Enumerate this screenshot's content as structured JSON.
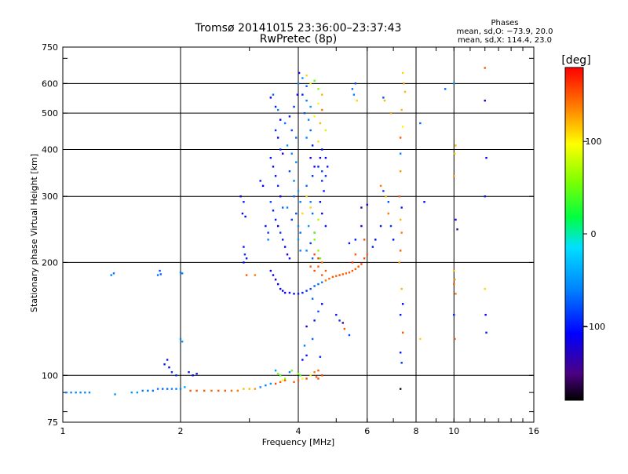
{
  "chart_data": {
    "type": "scatter",
    "title": "Tromsø 20141015 23:36:00–23:37:43",
    "subtitle": "RwPretec (8p)",
    "stats": {
      "header": "Phases",
      "line_o": "mean, sd,O: −73.9, 20.0",
      "line_x": "mean, sd,X: 114.4, 23.0"
    },
    "xlabel": "Frequency [MHz]",
    "ylabel": "Stationary phase Virtual Height [km]",
    "x_scale": "log",
    "y_scale": "log",
    "xlim": [
      1,
      16
    ],
    "ylim": [
      75,
      750
    ],
    "x_ticks": [
      1,
      2,
      4,
      6,
      8,
      10,
      16
    ],
    "x_tick_labels": [
      "1",
      "2",
      "4",
      "6",
      "8",
      "10",
      "16"
    ],
    "y_ticks": [
      75,
      100,
      200,
      300,
      400,
      500,
      600,
      750
    ],
    "y_tick_labels": [
      "75",
      "100",
      "200",
      "300",
      "400",
      "500",
      "600",
      "750"
    ],
    "grid_x": [
      2,
      4,
      6,
      8,
      10
    ],
    "grid_y": [
      100,
      200,
      300,
      400,
      500,
      600
    ],
    "colorbar": {
      "label": "[deg]",
      "range": [
        -180,
        180
      ],
      "ticks": [
        100,
        0,
        -100
      ],
      "tick_labels": [
        "100",
        "0",
        "−100"
      ]
    },
    "points": [
      [
        1.02,
        90,
        -55
      ],
      [
        1.05,
        90,
        -55
      ],
      [
        1.08,
        90,
        -55
      ],
      [
        1.11,
        90,
        -55
      ],
      [
        1.14,
        90,
        -55
      ],
      [
        1.17,
        90,
        -55
      ],
      [
        1.36,
        89,
        -50
      ],
      [
        1.5,
        90,
        -50
      ],
      [
        1.55,
        90,
        -50
      ],
      [
        1.6,
        91,
        -60
      ],
      [
        1.65,
        91,
        -65
      ],
      [
        1.7,
        91,
        -65
      ],
      [
        1.75,
        92,
        -65
      ],
      [
        1.8,
        92,
        -70
      ],
      [
        1.85,
        92,
        -70
      ],
      [
        1.9,
        92,
        -60
      ],
      [
        1.95,
        92,
        -65
      ],
      [
        2.0,
        92,
        -60
      ],
      [
        2.05,
        93,
        -40
      ],
      [
        2.12,
        91,
        150
      ],
      [
        2.2,
        91,
        150
      ],
      [
        2.3,
        91,
        150
      ],
      [
        2.4,
        91,
        145
      ],
      [
        2.5,
        91,
        150
      ],
      [
        2.6,
        91,
        150
      ],
      [
        2.7,
        91,
        145
      ],
      [
        2.8,
        91,
        140
      ],
      [
        2.9,
        92,
        120
      ],
      [
        3.0,
        92,
        120
      ],
      [
        3.1,
        92,
        130
      ],
      [
        3.2,
        93,
        -50
      ],
      [
        3.3,
        94,
        -60
      ],
      [
        3.4,
        95,
        -50
      ],
      [
        3.5,
        95,
        155
      ],
      [
        3.6,
        96,
        150
      ],
      [
        3.7,
        97,
        155
      ],
      [
        3.9,
        96,
        150
      ],
      [
        4.0,
        97,
        150
      ],
      [
        4.2,
        98,
        160
      ],
      [
        4.5,
        98,
        155
      ],
      [
        1.33,
        185,
        -60
      ],
      [
        1.35,
        187,
        -65
      ],
      [
        1.75,
        185,
        -65
      ],
      [
        1.77,
        190,
        -80
      ],
      [
        1.78,
        186,
        -70
      ],
      [
        2.0,
        188,
        -60
      ],
      [
        2.02,
        187,
        -60
      ],
      [
        2.0,
        125,
        -55
      ],
      [
        2.02,
        123,
        -50
      ],
      [
        1.82,
        107,
        -100
      ],
      [
        1.85,
        110,
        -100
      ],
      [
        1.87,
        105,
        -110
      ],
      [
        1.9,
        102,
        -90
      ],
      [
        1.95,
        100,
        -95
      ],
      [
        2.1,
        102,
        -100
      ],
      [
        2.15,
        100,
        -110
      ],
      [
        2.2,
        101,
        -100
      ],
      [
        2.85,
        300,
        -110
      ],
      [
        2.9,
        290,
        -100
      ],
      [
        2.88,
        270,
        -120
      ],
      [
        2.93,
        265,
        -110
      ],
      [
        2.9,
        220,
        -100
      ],
      [
        2.92,
        210,
        -90
      ],
      [
        2.95,
        205,
        -100
      ],
      [
        2.9,
        200,
        -110
      ],
      [
        2.95,
        185,
        150
      ],
      [
        3.1,
        185,
        140
      ],
      [
        3.2,
        330,
        -100
      ],
      [
        3.25,
        320,
        -110
      ],
      [
        3.3,
        250,
        -100
      ],
      [
        3.35,
        240,
        -90
      ],
      [
        3.4,
        190,
        -120
      ],
      [
        3.45,
        185,
        -115
      ],
      [
        3.5,
        180,
        -120
      ],
      [
        3.55,
        175,
        -110
      ],
      [
        3.6,
        170,
        -115
      ],
      [
        3.65,
        168,
        -110
      ],
      [
        3.7,
        166,
        -110
      ],
      [
        3.8,
        166,
        -105
      ],
      [
        3.9,
        165,
        -110
      ],
      [
        4.0,
        165,
        -100
      ],
      [
        4.1,
        166,
        -100
      ],
      [
        4.2,
        168,
        -95
      ],
      [
        4.3,
        170,
        -80
      ],
      [
        4.4,
        173,
        -75
      ],
      [
        4.5,
        175,
        -70
      ],
      [
        4.6,
        177,
        -60
      ],
      [
        4.7,
        179,
        140
      ],
      [
        4.8,
        181,
        145
      ],
      [
        4.9,
        183,
        150
      ],
      [
        5.0,
        184,
        150
      ],
      [
        5.1,
        185,
        155
      ],
      [
        5.2,
        186,
        150
      ],
      [
        5.3,
        187,
        145
      ],
      [
        5.4,
        188,
        150
      ],
      [
        5.5,
        190,
        155
      ],
      [
        5.6,
        192,
        150
      ],
      [
        5.7,
        195,
        150
      ],
      [
        5.8,
        198,
        155
      ],
      [
        5.9,
        205,
        155
      ],
      [
        4.3,
        195,
        150
      ],
      [
        4.4,
        190,
        155
      ],
      [
        4.5,
        195,
        150
      ],
      [
        4.6,
        200,
        145
      ],
      [
        4.4,
        210,
        155
      ],
      [
        4.5,
        205,
        160
      ],
      [
        4.6,
        185,
        150
      ],
      [
        4.7,
        190,
        150
      ],
      [
        3.4,
        550,
        -110
      ],
      [
        3.45,
        560,
        -70
      ],
      [
        3.5,
        520,
        -100
      ],
      [
        3.55,
        510,
        -60
      ],
      [
        3.6,
        480,
        -110
      ],
      [
        3.5,
        450,
        -90
      ],
      [
        3.55,
        430,
        -110
      ],
      [
        3.6,
        400,
        -100
      ],
      [
        3.65,
        390,
        -120
      ],
      [
        3.4,
        380,
        -100
      ],
      [
        3.45,
        360,
        -110
      ],
      [
        3.5,
        340,
        -100
      ],
      [
        3.55,
        320,
        -90
      ],
      [
        3.6,
        300,
        -110
      ],
      [
        3.65,
        280,
        -70
      ],
      [
        3.5,
        260,
        -100
      ],
      [
        3.55,
        250,
        -110
      ],
      [
        3.6,
        240,
        -90
      ],
      [
        3.65,
        230,
        -100
      ],
      [
        3.7,
        220,
        -110
      ],
      [
        3.75,
        210,
        -120
      ],
      [
        3.8,
        205,
        -100
      ],
      [
        3.4,
        290,
        -80
      ],
      [
        3.45,
        275,
        -100
      ],
      [
        3.35,
        230,
        -60
      ],
      [
        3.7,
        470,
        -60
      ],
      [
        3.8,
        490,
        -100
      ],
      [
        3.9,
        520,
        -90
      ],
      [
        3.85,
        450,
        -80
      ],
      [
        3.95,
        430,
        -70
      ],
      [
        3.75,
        410,
        -50
      ],
      [
        3.85,
        390,
        -60
      ],
      [
        3.95,
        370,
        -55
      ],
      [
        3.8,
        350,
        -80
      ],
      [
        3.9,
        330,
        -60
      ],
      [
        4.0,
        310,
        -50
      ],
      [
        3.9,
        300,
        -70
      ],
      [
        4.05,
        290,
        -60
      ],
      [
        3.95,
        270,
        -80
      ],
      [
        4.0,
        250,
        -60
      ],
      [
        4.05,
        240,
        -70
      ],
      [
        3.85,
        260,
        -90
      ],
      [
        3.75,
        280,
        -60
      ],
      [
        4.0,
        230,
        -50
      ],
      [
        4.05,
        215,
        -60
      ],
      [
        3.98,
        560,
        -110
      ],
      [
        4.0,
        600,
        -60
      ],
      [
        4.02,
        640,
        -120
      ],
      [
        4.1,
        620,
        -50
      ],
      [
        4.2,
        590,
        -70
      ],
      [
        4.1,
        560,
        -100
      ],
      [
        4.2,
        540,
        -60
      ],
      [
        4.3,
        520,
        -50
      ],
      [
        4.15,
        500,
        -80
      ],
      [
        4.25,
        480,
        -60
      ],
      [
        4.3,
        450,
        -70
      ],
      [
        4.2,
        430,
        -60
      ],
      [
        4.35,
        410,
        -100
      ],
      [
        4.3,
        380,
        -120
      ],
      [
        4.4,
        360,
        -110
      ],
      [
        4.35,
        340,
        -90
      ],
      [
        4.2,
        320,
        -70
      ],
      [
        4.3,
        290,
        -60
      ],
      [
        4.35,
        270,
        -70
      ],
      [
        4.25,
        250,
        -50
      ],
      [
        4.4,
        240,
        -80
      ],
      [
        4.3,
        225,
        -90
      ],
      [
        4.2,
        215,
        -60
      ],
      [
        4.35,
        205,
        -70
      ],
      [
        4.2,
        630,
        110
      ],
      [
        4.3,
        600,
        90
      ],
      [
        4.4,
        610,
        40
      ],
      [
        4.5,
        580,
        60
      ],
      [
        4.6,
        560,
        120
      ],
      [
        4.5,
        530,
        100
      ],
      [
        4.6,
        510,
        140
      ],
      [
        4.4,
        490,
        100
      ],
      [
        4.55,
        470,
        120
      ],
      [
        4.7,
        450,
        80
      ],
      [
        4.5,
        420,
        110
      ],
      [
        4.6,
        400,
        -110
      ],
      [
        4.55,
        380,
        -110
      ],
      [
        4.5,
        360,
        -100
      ],
      [
        4.6,
        350,
        -80
      ],
      [
        4.7,
        340,
        -90
      ],
      [
        4.65,
        310,
        -100
      ],
      [
        4.55,
        290,
        -110
      ],
      [
        4.6,
        270,
        -120
      ],
      [
        4.7,
        250,
        -100
      ],
      [
        4.7,
        380,
        -110
      ],
      [
        4.75,
        360,
        -100
      ],
      [
        4.6,
        330,
        -90
      ],
      [
        4.4,
        240,
        50
      ],
      [
        4.5,
        260,
        70
      ],
      [
        4.3,
        280,
        110
      ],
      [
        4.2,
        300,
        110
      ],
      [
        4.1,
        270,
        110
      ],
      [
        4.4,
        230,
        50
      ],
      [
        4.5,
        215,
        60
      ],
      [
        4.55,
        205,
        50
      ],
      [
        3.5,
        103,
        -50
      ],
      [
        3.55,
        101,
        60
      ],
      [
        3.6,
        100,
        40
      ],
      [
        3.7,
        98,
        60
      ],
      [
        3.65,
        97,
        100
      ],
      [
        3.8,
        102,
        -60
      ],
      [
        3.85,
        103,
        50
      ],
      [
        4.0,
        101,
        60
      ],
      [
        4.05,
        100,
        40
      ],
      [
        4.1,
        98,
        100
      ],
      [
        4.3,
        100,
        100
      ],
      [
        4.4,
        102,
        140
      ],
      [
        4.5,
        103,
        150
      ],
      [
        4.45,
        99,
        150
      ],
      [
        4.6,
        100,
        160
      ],
      [
        4.15,
        120,
        -60
      ],
      [
        4.2,
        113,
        -100
      ],
      [
        4.1,
        110,
        -110
      ],
      [
        4.35,
        125,
        -70
      ],
      [
        4.55,
        112,
        -90
      ],
      [
        4.2,
        135,
        -120
      ],
      [
        4.4,
        140,
        -100
      ],
      [
        4.5,
        148,
        -80
      ],
      [
        4.6,
        155,
        -110
      ],
      [
        4.35,
        160,
        -70
      ],
      [
        5.0,
        145,
        -100
      ],
      [
        5.1,
        140,
        -90
      ],
      [
        5.2,
        138,
        -150
      ],
      [
        5.25,
        133,
        150
      ],
      [
        5.4,
        128,
        -80
      ],
      [
        5.4,
        225,
        -100
      ],
      [
        5.6,
        230,
        -100
      ],
      [
        5.8,
        250,
        -110
      ],
      [
        5.8,
        280,
        -130
      ],
      [
        6.0,
        285,
        -120
      ],
      [
        5.9,
        230,
        155
      ],
      [
        5.5,
        200,
        160
      ],
      [
        5.7,
        195,
        150
      ],
      [
        5.6,
        210,
        150
      ],
      [
        5.5,
        580,
        -70
      ],
      [
        5.55,
        560,
        -60
      ],
      [
        5.6,
        600,
        -80
      ],
      [
        5.65,
        540,
        110
      ],
      [
        6.6,
        550,
        -80
      ],
      [
        6.65,
        540,
        120
      ],
      [
        6.9,
        500,
        130
      ],
      [
        7.3,
        430,
        150
      ],
      [
        7.3,
        390,
        -60
      ],
      [
        7.35,
        510,
        120
      ],
      [
        7.4,
        460,
        100
      ],
      [
        7.3,
        350,
        130
      ],
      [
        7.25,
        300,
        150
      ],
      [
        7.35,
        280,
        -100
      ],
      [
        7.3,
        260,
        120
      ],
      [
        7.35,
        240,
        140
      ],
      [
        7.25,
        200,
        130
      ],
      [
        7.3,
        215,
        150
      ],
      [
        7.35,
        170,
        120
      ],
      [
        7.4,
        155,
        -110
      ],
      [
        7.3,
        145,
        -100
      ],
      [
        7.4,
        130,
        150
      ],
      [
        7.3,
        115,
        -100
      ],
      [
        7.35,
        108,
        -90
      ],
      [
        7.3,
        92,
        -175
      ],
      [
        7.4,
        640,
        110
      ],
      [
        7.45,
        600,
        130
      ],
      [
        7.5,
        570,
        120
      ],
      [
        6.5,
        320,
        140
      ],
      [
        6.6,
        310,
        -90
      ],
      [
        6.7,
        300,
        120
      ],
      [
        6.8,
        290,
        -80
      ],
      [
        6.0,
        210,
        150
      ],
      [
        6.2,
        220,
        -100
      ],
      [
        6.3,
        230,
        -110
      ],
      [
        6.5,
        250,
        -100
      ],
      [
        6.8,
        270,
        140
      ],
      [
        6.9,
        250,
        -90
      ],
      [
        7.0,
        230,
        -110
      ],
      [
        8.2,
        470,
        -70
      ],
      [
        8.4,
        290,
        -110
      ],
      [
        8.2,
        125,
        110
      ],
      [
        10.0,
        190,
        120
      ],
      [
        10.05,
        180,
        130
      ],
      [
        10.0,
        175,
        150
      ],
      [
        10.1,
        165,
        140
      ],
      [
        10.0,
        145,
        -100
      ],
      [
        10.05,
        125,
        150
      ],
      [
        10.1,
        260,
        -120
      ],
      [
        10.2,
        245,
        -140
      ],
      [
        10.0,
        340,
        130
      ],
      [
        10.05,
        390,
        110
      ],
      [
        10.1,
        410,
        120
      ],
      [
        10.0,
        600,
        -50
      ],
      [
        12.0,
        540,
        -120
      ],
      [
        12.1,
        380,
        -110
      ],
      [
        12.0,
        300,
        -100
      ],
      [
        12.0,
        170,
        110
      ],
      [
        12.05,
        145,
        -110
      ],
      [
        12.0,
        660,
        150
      ],
      [
        12.1,
        130,
        -100
      ],
      [
        9.5,
        580,
        -70
      ]
    ]
  }
}
